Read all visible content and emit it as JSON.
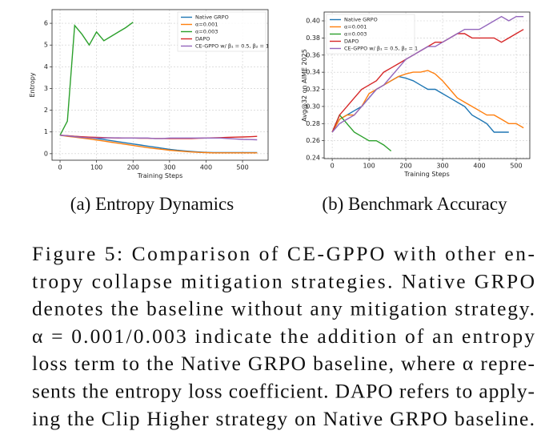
{
  "chart_data": [
    {
      "type": "line",
      "caption": "(a) Entropy Dynamics",
      "xlabel": "Training Steps",
      "ylabel": "Entropy",
      "x": [
        0,
        20,
        40,
        60,
        80,
        100,
        120,
        140,
        160,
        180,
        200,
        220,
        240,
        260,
        280,
        300,
        320,
        340,
        360,
        380,
        400,
        420,
        440,
        460,
        480,
        500,
        520,
        540
      ],
      "xlim": [
        -22,
        570
      ],
      "xticks": [
        0,
        100,
        200,
        300,
        400,
        500
      ],
      "ylim": [
        -0.3,
        6.63
      ],
      "yticks": [
        0,
        1,
        2,
        3,
        4,
        5,
        6
      ],
      "grid": true,
      "legend": "upper right",
      "series": [
        {
          "name": "Native GRPO",
          "color": "#1f77b4",
          "values": [
            0.85,
            0.82,
            0.8,
            0.77,
            0.74,
            0.7,
            0.65,
            0.6,
            0.55,
            0.5,
            0.45,
            0.4,
            0.35,
            0.3,
            0.25,
            0.2,
            0.16,
            0.13,
            0.1,
            0.08,
            0.06,
            0.05,
            0.05,
            0.05,
            0.05,
            0.05,
            0.05,
            0.05
          ]
        },
        {
          "name": "α=0.001",
          "color": "#ff7f0e",
          "values": [
            0.85,
            0.8,
            0.76,
            0.72,
            0.68,
            0.63,
            0.58,
            0.53,
            0.48,
            0.43,
            0.38,
            0.33,
            0.28,
            0.24,
            0.2,
            0.16,
            0.13,
            0.1,
            0.08,
            0.06,
            0.05,
            0.04,
            0.04,
            0.04,
            0.04,
            0.04,
            0.04,
            0.04
          ]
        },
        {
          "name": "α=0.003",
          "color": "#2ca02c",
          "values": [
            0.85,
            1.5,
            5.9,
            5.5,
            5.0,
            5.6,
            5.2,
            5.4,
            5.6,
            5.8,
            6.05,
            null,
            null,
            null,
            null,
            null,
            null,
            null,
            null,
            null,
            null,
            null,
            null,
            null,
            null,
            null,
            null,
            null
          ]
        },
        {
          "name": "DAPO",
          "color": "#d62728",
          "values": [
            0.85,
            0.83,
            0.8,
            0.78,
            0.76,
            0.75,
            0.74,
            0.73,
            0.72,
            0.72,
            0.72,
            0.71,
            0.71,
            0.7,
            0.7,
            0.7,
            0.7,
            0.7,
            0.7,
            0.71,
            0.72,
            0.73,
            0.74,
            0.75,
            0.76,
            0.77,
            0.78,
            0.8
          ]
        },
        {
          "name": "CE-GPPO w/ β₁ = 0.5, β₂ = 1",
          "color": "#9467bd",
          "values": [
            0.85,
            0.82,
            0.78,
            0.75,
            0.73,
            0.72,
            0.72,
            0.73,
            0.73,
            0.72,
            0.72,
            0.72,
            0.72,
            0.7,
            0.7,
            0.72,
            0.72,
            0.72,
            0.72,
            0.72,
            0.72,
            0.72,
            0.72,
            0.7,
            0.68,
            0.66,
            0.65,
            0.64
          ]
        }
      ]
    },
    {
      "type": "line",
      "caption": "(b) Benchmark Accuracy",
      "xlabel": "Training Steps",
      "ylabel": "Avg@32 on AIME 2025",
      "x": [
        0,
        20,
        40,
        60,
        80,
        100,
        120,
        140,
        160,
        180,
        200,
        220,
        240,
        260,
        280,
        300,
        320,
        340,
        360,
        380,
        400,
        420,
        440,
        460,
        480,
        500,
        520
      ],
      "xlim": [
        -22,
        537
      ],
      "xticks": [
        0,
        100,
        200,
        300,
        400,
        500
      ],
      "ylim": [
        0.2391,
        0.4103
      ],
      "yticks": [
        0.24,
        0.26,
        0.28,
        {
          "value": 0.3,
          "label": "0.30"
        },
        0.32,
        0.34,
        0.36,
        0.38,
        {
          "value": 0.4,
          "label": "0.40"
        }
      ],
      "grid": true,
      "legend": "upper left",
      "series": [
        {
          "name": "Native GRPO",
          "color": "#1f77b4",
          "values": [
            0.27,
            0.285,
            0.29,
            0.295,
            0.3,
            0.31,
            0.32,
            0.325,
            0.33,
            0.335,
            0.333,
            0.33,
            0.325,
            0.32,
            0.32,
            0.315,
            0.31,
            0.305,
            0.3,
            0.29,
            0.285,
            0.28,
            0.27,
            0.27,
            0.27,
            null,
            null
          ]
        },
        {
          "name": "α=0.001",
          "color": "#ff7f0e",
          "values": [
            0.27,
            0.285,
            0.29,
            0.29,
            0.3,
            0.315,
            0.32,
            0.325,
            0.33,
            0.335,
            0.338,
            0.34,
            0.34,
            0.342,
            0.338,
            0.33,
            0.32,
            0.31,
            0.305,
            0.3,
            0.295,
            0.29,
            0.29,
            0.285,
            0.28,
            0.28,
            0.275
          ]
        },
        {
          "name": "α=0.003",
          "color": "#2ca02c",
          "values": [
            0.27,
            0.29,
            0.28,
            0.27,
            0.265,
            0.26,
            0.26,
            0.255,
            0.248,
            null,
            null,
            null,
            null,
            null,
            null,
            null,
            null,
            null,
            null,
            null,
            null,
            null,
            null,
            null,
            null,
            null,
            null
          ]
        },
        {
          "name": "DAPO",
          "color": "#d62728",
          "values": [
            0.27,
            0.29,
            0.3,
            0.31,
            0.32,
            0.325,
            0.33,
            0.34,
            0.345,
            0.35,
            0.355,
            0.36,
            0.365,
            0.37,
            0.375,
            0.375,
            0.38,
            0.385,
            0.385,
            0.38,
            0.38,
            0.38,
            0.38,
            0.375,
            0.38,
            0.385,
            0.39
          ]
        },
        {
          "name": "CE-GPPO w/ β₁ = 0.5, β₂ = 1",
          "color": "#9467bd",
          "values": [
            0.27,
            0.28,
            0.285,
            0.29,
            0.3,
            0.31,
            0.32,
            0.325,
            0.335,
            0.345,
            0.355,
            0.36,
            0.365,
            0.37,
            0.37,
            0.375,
            0.38,
            0.385,
            0.39,
            0.39,
            0.39,
            0.395,
            0.4,
            0.405,
            0.4,
            0.405,
            0.405
          ]
        }
      ]
    }
  ],
  "figure_caption": {
    "lines": [
      "Figure 5: Comparison of CE-GPPO with other en-",
      "tropy collapse mitigation strategies. Native GRPO",
      "denotes the baseline without any mitigation strategy.",
      "α = 0.001/0.003 indicate the addition of an entropy",
      "loss term to the Native GRPO baseline, where α repre-",
      "sents the entropy loss coefficient. DAPO refers to apply-",
      "ing the Clip Higher strategy on Native GRPO baseline."
    ]
  }
}
